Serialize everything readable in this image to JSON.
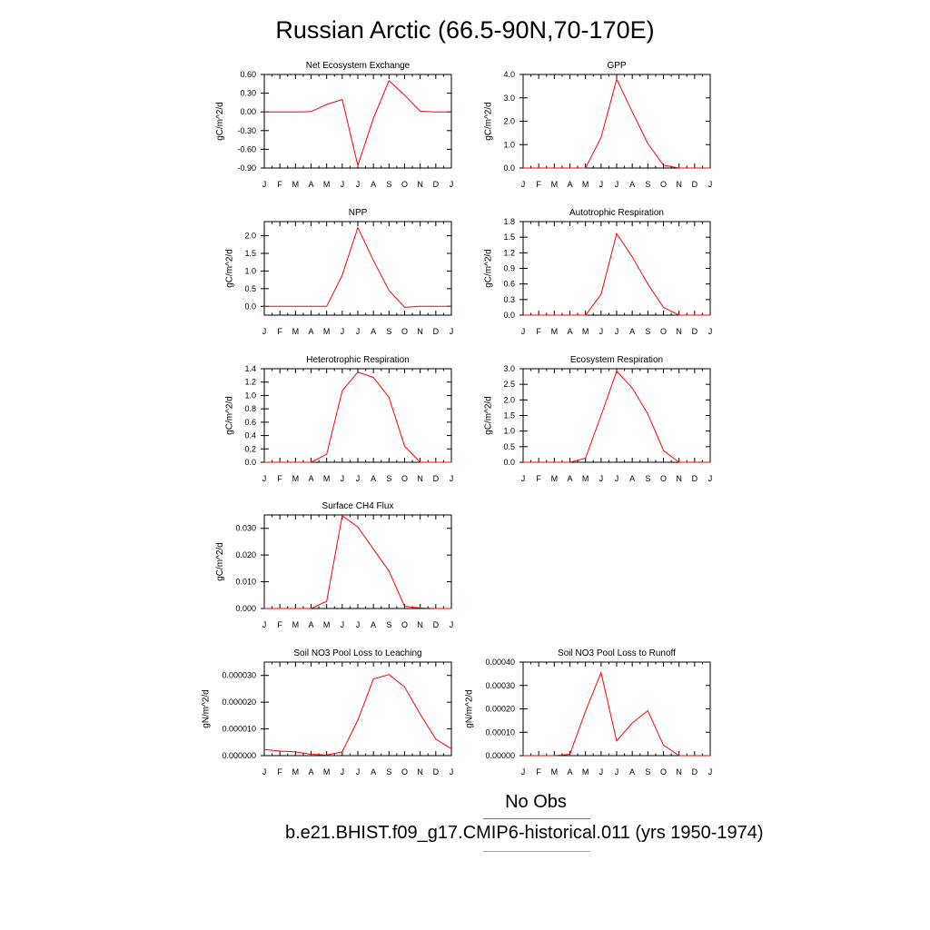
{
  "title": "Russian Arctic (66.5-90N,70-170E)",
  "colors": {
    "series": "#ff0000",
    "obs_line": "#5a6cf0",
    "run_line": "#f08080",
    "axis": "#000000"
  },
  "legend": {
    "obs_label": "No Obs",
    "run_label": "b.e21.BHIST.f09_g17.CMIP6-historical.011 (yrs 1950-1974)"
  },
  "chart_data": [
    {
      "type": "line",
      "title": "Net Ecosystem Exchange",
      "ylabel": "gC/m^2/d",
      "x": [
        "J",
        "F",
        "M",
        "A",
        "M",
        "J",
        "J",
        "A",
        "S",
        "O",
        "N",
        "D",
        "J"
      ],
      "values": [
        0.0,
        0.0,
        0.0,
        0.005,
        0.12,
        0.2,
        -0.86,
        -0.1,
        0.5,
        0.27,
        0.01,
        0.0,
        0.0
      ],
      "ylim": [
        -0.9,
        0.6
      ],
      "yticks": [
        "0.60",
        "0.30",
        "0.00",
        "-0.30",
        "-0.60",
        "-0.90"
      ]
    },
    {
      "type": "line",
      "title": "GPP",
      "ylabel": "gC/m^2/d",
      "x": [
        "J",
        "F",
        "M",
        "A",
        "M",
        "J",
        "J",
        "A",
        "S",
        "O",
        "N",
        "D",
        "J"
      ],
      "values": [
        0.0,
        0.0,
        0.0,
        0.0,
        0.0,
        1.3,
        3.8,
        2.4,
        1.05,
        0.12,
        0.0,
        0.0,
        0.0
      ],
      "ylim": [
        0,
        4.0
      ],
      "yticks": [
        "4.0",
        "3.0",
        "2.0",
        "1.0",
        "0.0"
      ]
    },
    {
      "type": "line",
      "title": "NPP",
      "ylabel": "gC/m^2/d",
      "x": [
        "J",
        "F",
        "M",
        "A",
        "M",
        "J",
        "J",
        "A",
        "S",
        "O",
        "N",
        "D",
        "J"
      ],
      "values": [
        0.0,
        0.0,
        0.0,
        0.0,
        0.0,
        0.88,
        2.23,
        1.3,
        0.45,
        -0.03,
        0.0,
        0.0,
        0.0
      ],
      "ylim": [
        -0.25,
        2.4
      ],
      "yticks": [
        "2.0",
        "1.5",
        "1.0",
        "0.5",
        "0.0"
      ]
    },
    {
      "type": "line",
      "title": "Autotrophic Respiration",
      "ylabel": "gC/m^2/d",
      "x": [
        "J",
        "F",
        "M",
        "A",
        "M",
        "J",
        "J",
        "A",
        "S",
        "O",
        "N",
        "D",
        "J"
      ],
      "values": [
        0.0,
        0.0,
        0.0,
        0.0,
        0.0,
        0.4,
        1.57,
        1.12,
        0.6,
        0.15,
        0.0,
        0.0,
        0.0
      ],
      "ylim": [
        0,
        1.8
      ],
      "yticks": [
        "1.8",
        "1.5",
        "1.2",
        "0.9",
        "0.6",
        "0.3",
        "0.0"
      ]
    },
    {
      "type": "line",
      "title": "Heterotrophic Respiration",
      "ylabel": "gC/m^2/d",
      "x": [
        "J",
        "F",
        "M",
        "A",
        "M",
        "J",
        "J",
        "A",
        "S",
        "O",
        "N",
        "D",
        "J"
      ],
      "values": [
        0.0,
        0.0,
        0.0,
        0.0,
        0.12,
        1.07,
        1.35,
        1.27,
        0.97,
        0.24,
        0.0,
        0.0,
        0.0
      ],
      "ylim": [
        0,
        1.4
      ],
      "yticks": [
        "1.4",
        "1.2",
        "1.0",
        "0.8",
        "0.6",
        "0.4",
        "0.2",
        "0.0"
      ]
    },
    {
      "type": "line",
      "title": "Ecosystem Respiration",
      "ylabel": "gC/m^2/d",
      "x": [
        "J",
        "F",
        "M",
        "A",
        "M",
        "J",
        "J",
        "A",
        "S",
        "O",
        "N",
        "D",
        "J"
      ],
      "values": [
        0.0,
        0.0,
        0.0,
        0.0,
        0.13,
        1.5,
        2.92,
        2.38,
        1.55,
        0.38,
        0.0,
        0.0,
        0.0
      ],
      "ylim": [
        0,
        3.0
      ],
      "yticks": [
        "3.0",
        "2.5",
        "2.0",
        "1.5",
        "1.0",
        "0.5",
        "0.0"
      ]
    },
    {
      "type": "line",
      "title": "Surface CH4 Flux",
      "ylabel": "gC/m^2/d",
      "x": [
        "J",
        "F",
        "M",
        "A",
        "M",
        "J",
        "J",
        "A",
        "S",
        "O",
        "N",
        "D",
        "J"
      ],
      "values": [
        0.0,
        0.0,
        0.0,
        0.0,
        0.0027,
        0.0347,
        0.0305,
        0.0222,
        0.014,
        0.0008,
        0.0002,
        0.0,
        0.0
      ],
      "ylim": [
        0,
        0.035
      ],
      "yticks": [
        "0.030",
        "0.020",
        "0.010",
        "0.000"
      ]
    },
    {
      "type": "line",
      "title": "Soil NO3 Pool Loss to Leaching",
      "ylabel": "gN/m^2/d",
      "x": [
        "J",
        "F",
        "M",
        "A",
        "M",
        "J",
        "J",
        "A",
        "S",
        "O",
        "N",
        "D",
        "J"
      ],
      "values": [
        2.3e-06,
        1.7e-06,
        1.4e-06,
        5e-07,
        2e-07,
        1.4e-06,
        1.33e-05,
        2.87e-05,
        3.03e-05,
        2.57e-05,
        1.55e-05,
        6.2e-06,
        2.5e-06
      ],
      "ylim": [
        0,
        3.5e-05
      ],
      "yticks": [
        "0.000030",
        "0.000020",
        "0.000010",
        "0.000000"
      ]
    },
    {
      "type": "line",
      "title": "Soil NO3 Pool Loss to Runoff",
      "ylabel": "gN/m^2/d",
      "x": [
        "J",
        "F",
        "M",
        "A",
        "M",
        "J",
        "J",
        "A",
        "S",
        "O",
        "N",
        "D",
        "J"
      ],
      "values": [
        0.0,
        0.0,
        0.0,
        6e-06,
        0.00019,
        0.000355,
        6.3e-05,
        0.00014,
        0.000192,
        4.5e-05,
        0.0,
        0.0,
        0.0
      ],
      "ylim": [
        0,
        0.0004
      ],
      "yticks": [
        "0.00040",
        "0.00030",
        "0.00020",
        "0.00010",
        "0.00000"
      ]
    }
  ]
}
